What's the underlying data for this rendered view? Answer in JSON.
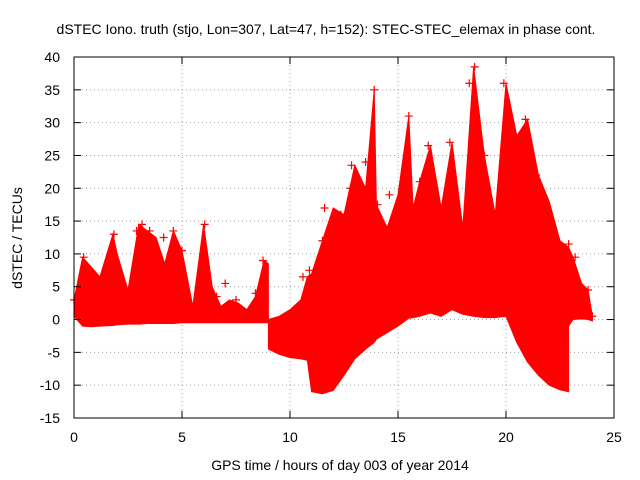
{
  "chart_data": {
    "type": "scatter",
    "title": "dSTEC Iono. truth (stjo, Lon=307, Lat=47, h=152): STEC-STEC_elemax in phase cont.",
    "xlabel": "GPS time / hours of day 003 of year 2014",
    "ylabel": "dSTEC  / TECUs",
    "xlim": [
      0,
      25
    ],
    "ylim": [
      -15,
      40
    ],
    "xticks": [
      0,
      5,
      10,
      15,
      20,
      25
    ],
    "yticks": [
      -15,
      -10,
      -5,
      0,
      5,
      10,
      15,
      20,
      25,
      30,
      35,
      40
    ],
    "grid": true,
    "marker": "+",
    "color": "#ff0000",
    "series": [
      {
        "name": "dSTEC",
        "envelopes": [
          {
            "x": [
              0.0,
              0.4,
              0.8,
              1.2,
              1.8,
              2.0,
              2.5,
              3.0,
              3.4,
              3.8,
              4.2,
              4.6,
              5.0,
              5.5,
              6.0,
              6.4,
              6.8,
              7.2,
              7.6,
              8.0,
              8.4,
              8.8,
              9.0
            ],
            "upper": [
              3.0,
              9.5,
              8.0,
              6.5,
              13.0,
              10.0,
              4.5,
              14.5,
              13.5,
              12.5,
              8.5,
              13.5,
              10.5,
              2.0,
              14.5,
              5.0,
              2.0,
              3.0,
              2.5,
              1.5,
              3.5,
              9.0,
              8.5
            ],
            "lower": [
              0.5,
              -1.0,
              -1.1,
              -1.0,
              -0.9,
              -0.8,
              -0.7,
              -0.7,
              -0.6,
              -0.6,
              -0.6,
              -0.6,
              -0.5,
              -0.5,
              -0.5,
              -0.5,
              -0.5,
              -0.5,
              -0.5,
              -0.5,
              -0.5,
              -0.5,
              -0.5
            ]
          },
          {
            "x": [
              9.0,
              9.5,
              10.0,
              10.5,
              10.8,
              11.0,
              11.5,
              12.0,
              12.5,
              13.0,
              13.5,
              13.9,
              14.0,
              14.5,
              15.0,
              15.5,
              15.7,
              16.0,
              16.5,
              17.0,
              17.5,
              18.0,
              18.5,
              19.0,
              19.5,
              20.0,
              20.5,
              21.0,
              21.5,
              22.0,
              22.5,
              22.9
            ],
            "upper": [
              0.0,
              0.5,
              1.5,
              3.0,
              6.5,
              7.0,
              12.0,
              17.0,
              16.0,
              23.5,
              20.0,
              35.0,
              17.5,
              14.0,
              19.0,
              31.0,
              17.0,
              21.0,
              26.5,
              17.0,
              27.0,
              14.0,
              38.5,
              25.0,
              16.0,
              36.0,
              28.0,
              30.5,
              22.0,
              18.0,
              12.0,
              11.0
            ],
            "lower": [
              -4.5,
              -5.3,
              -5.8,
              -6.0,
              -6.2,
              -11.0,
              -11.3,
              -10.8,
              -8.5,
              -6.0,
              -4.5,
              -3.5,
              -3.0,
              -2.0,
              -1.0,
              0.2,
              0.3,
              0.5,
              1.0,
              0.5,
              1.5,
              0.8,
              0.5,
              0.3,
              0.3,
              0.5,
              -3.5,
              -6.5,
              -8.5,
              -10.0,
              -10.7,
              -11.0
            ]
          },
          {
            "x": [
              22.9,
              23.1,
              23.5,
              23.8,
              24.0
            ],
            "upper": [
              11.0,
              9.5,
              5.5,
              4.5,
              0.5
            ],
            "lower": [
              -1.0,
              0.0,
              0.1,
              0.0,
              -0.2
            ]
          }
        ],
        "peaks": [
          {
            "x": 0.0,
            "y": 3.0
          },
          {
            "x": 0.45,
            "y": 9.5
          },
          {
            "x": 1.85,
            "y": 13.0
          },
          {
            "x": 2.9,
            "y": 13.5
          },
          {
            "x": 3.15,
            "y": 14.5
          },
          {
            "x": 3.5,
            "y": 13.5
          },
          {
            "x": 4.15,
            "y": 12.5
          },
          {
            "x": 4.6,
            "y": 13.5
          },
          {
            "x": 5.0,
            "y": 10.5
          },
          {
            "x": 6.05,
            "y": 14.5
          },
          {
            "x": 6.6,
            "y": 3.5
          },
          {
            "x": 7.0,
            "y": 5.5
          },
          {
            "x": 7.5,
            "y": 3.0
          },
          {
            "x": 8.4,
            "y": 4.0
          },
          {
            "x": 8.75,
            "y": 9.0
          },
          {
            "x": 10.6,
            "y": 6.5
          },
          {
            "x": 10.9,
            "y": 7.5
          },
          {
            "x": 11.5,
            "y": 12.0
          },
          {
            "x": 11.6,
            "y": 17.0
          },
          {
            "x": 12.35,
            "y": 16.0
          },
          {
            "x": 12.8,
            "y": 20.0
          },
          {
            "x": 12.85,
            "y": 23.5
          },
          {
            "x": 13.5,
            "y": 24.0
          },
          {
            "x": 13.9,
            "y": 35.0
          },
          {
            "x": 14.05,
            "y": 17.5
          },
          {
            "x": 14.6,
            "y": 19.0
          },
          {
            "x": 15.5,
            "y": 31.0
          },
          {
            "x": 15.7,
            "y": 17.0
          },
          {
            "x": 16.0,
            "y": 21.0
          },
          {
            "x": 16.4,
            "y": 26.5
          },
          {
            "x": 16.8,
            "y": 17.0
          },
          {
            "x": 17.4,
            "y": 27.0
          },
          {
            "x": 18.3,
            "y": 36.0
          },
          {
            "x": 18.55,
            "y": 38.5
          },
          {
            "x": 19.0,
            "y": 25.0
          },
          {
            "x": 19.9,
            "y": 36.0
          },
          {
            "x": 20.35,
            "y": 28.0
          },
          {
            "x": 20.9,
            "y": 30.5
          },
          {
            "x": 21.4,
            "y": 22.0
          },
          {
            "x": 21.65,
            "y": 18.0
          },
          {
            "x": 22.9,
            "y": 11.5
          },
          {
            "x": 23.2,
            "y": 9.5
          },
          {
            "x": 23.8,
            "y": 4.5
          },
          {
            "x": 24.0,
            "y": 0.5
          }
        ]
      }
    ]
  }
}
